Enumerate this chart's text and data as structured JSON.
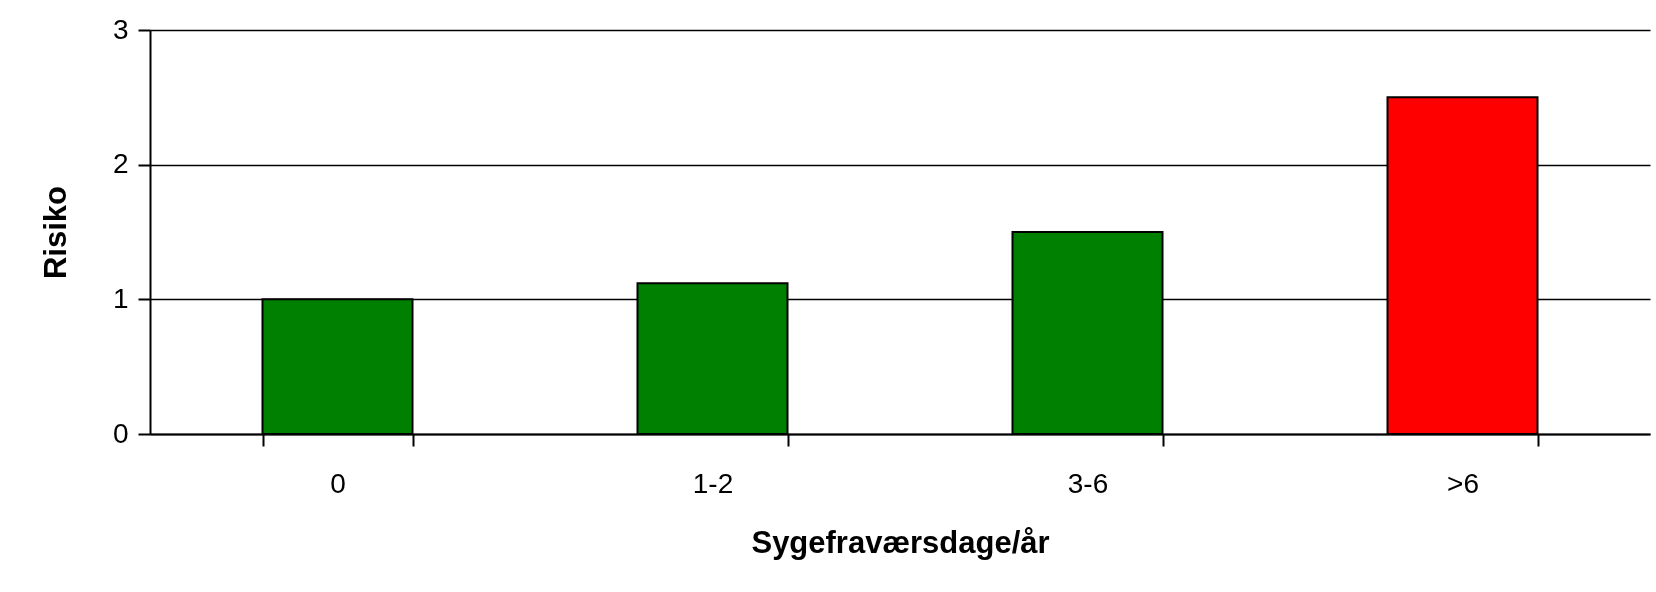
{
  "chart_data": {
    "type": "bar",
    "xlabel": "Sygefraværsdage/år",
    "ylabel": "Risiko",
    "categories": [
      "0",
      "1-2",
      "3-6",
      ">6"
    ],
    "values": [
      1,
      1.12,
      1.5,
      2.5
    ],
    "colors": [
      "#008000",
      "#008000",
      "#008000",
      "#ff0000"
    ],
    "ylim": [
      0,
      3
    ],
    "yticks": [
      0,
      1,
      2,
      3
    ],
    "grid": "y"
  }
}
